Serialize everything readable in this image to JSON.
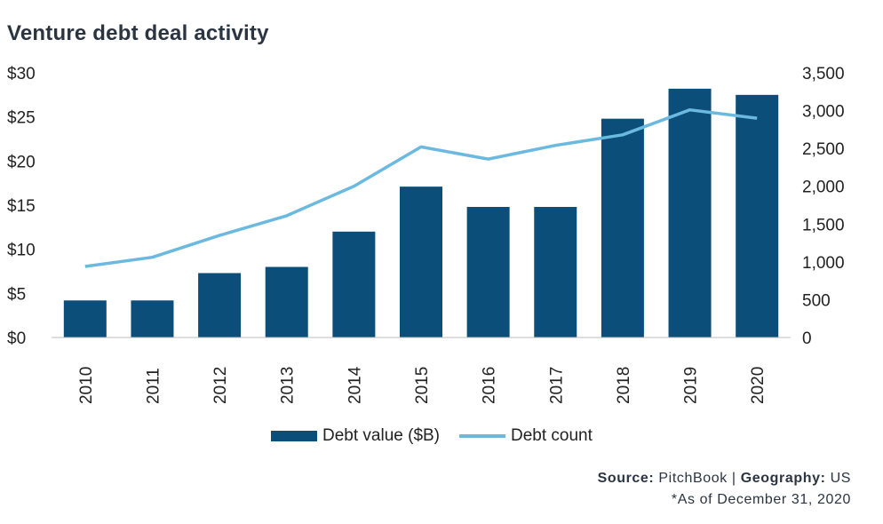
{
  "chart_data": {
    "type": "bar",
    "title": "Venture debt deal activity",
    "categories": [
      "2010",
      "2011",
      "2012",
      "2013",
      "2014",
      "2015",
      "2016",
      "2017",
      "2018",
      "2019",
      "2020"
    ],
    "series": [
      {
        "name": "Debt value ($B)",
        "type": "bar",
        "axis": "left",
        "color": "#0b4e7a",
        "values": [
          4.2,
          4.2,
          7.3,
          8.0,
          12.0,
          17.1,
          14.8,
          14.8,
          24.8,
          28.2,
          27.5
        ]
      },
      {
        "name": "Debt count",
        "type": "line",
        "axis": "right",
        "color": "#6cb9e0",
        "values": [
          940,
          1060,
          1350,
          1610,
          2000,
          2520,
          2360,
          2540,
          2680,
          3010,
          2900
        ]
      }
    ],
    "left_axis": {
      "min": 0,
      "max": 30,
      "ticks": [
        "$0",
        "$5",
        "$10",
        "$15",
        "$20",
        "$25",
        "$30"
      ],
      "tick_values": [
        0,
        5,
        10,
        15,
        20,
        25,
        30
      ]
    },
    "right_axis": {
      "min": 0,
      "max": 3500,
      "ticks": [
        "0",
        "500",
        "1,000",
        "1,500",
        "2,000",
        "2,500",
        "3,000",
        "3,500"
      ],
      "tick_values": [
        0,
        500,
        1000,
        1500,
        2000,
        2500,
        3000,
        3500
      ]
    },
    "grid": false,
    "legend_position": "bottom"
  },
  "legend": {
    "bar_label": "Debt value ($B)",
    "line_label": "Debt count"
  },
  "footer": {
    "source_label": "Source:",
    "source_value": "PitchBook",
    "separator": "|",
    "geo_label": "Geography:",
    "geo_value": "US",
    "note": "*As of December 31, 2020"
  }
}
